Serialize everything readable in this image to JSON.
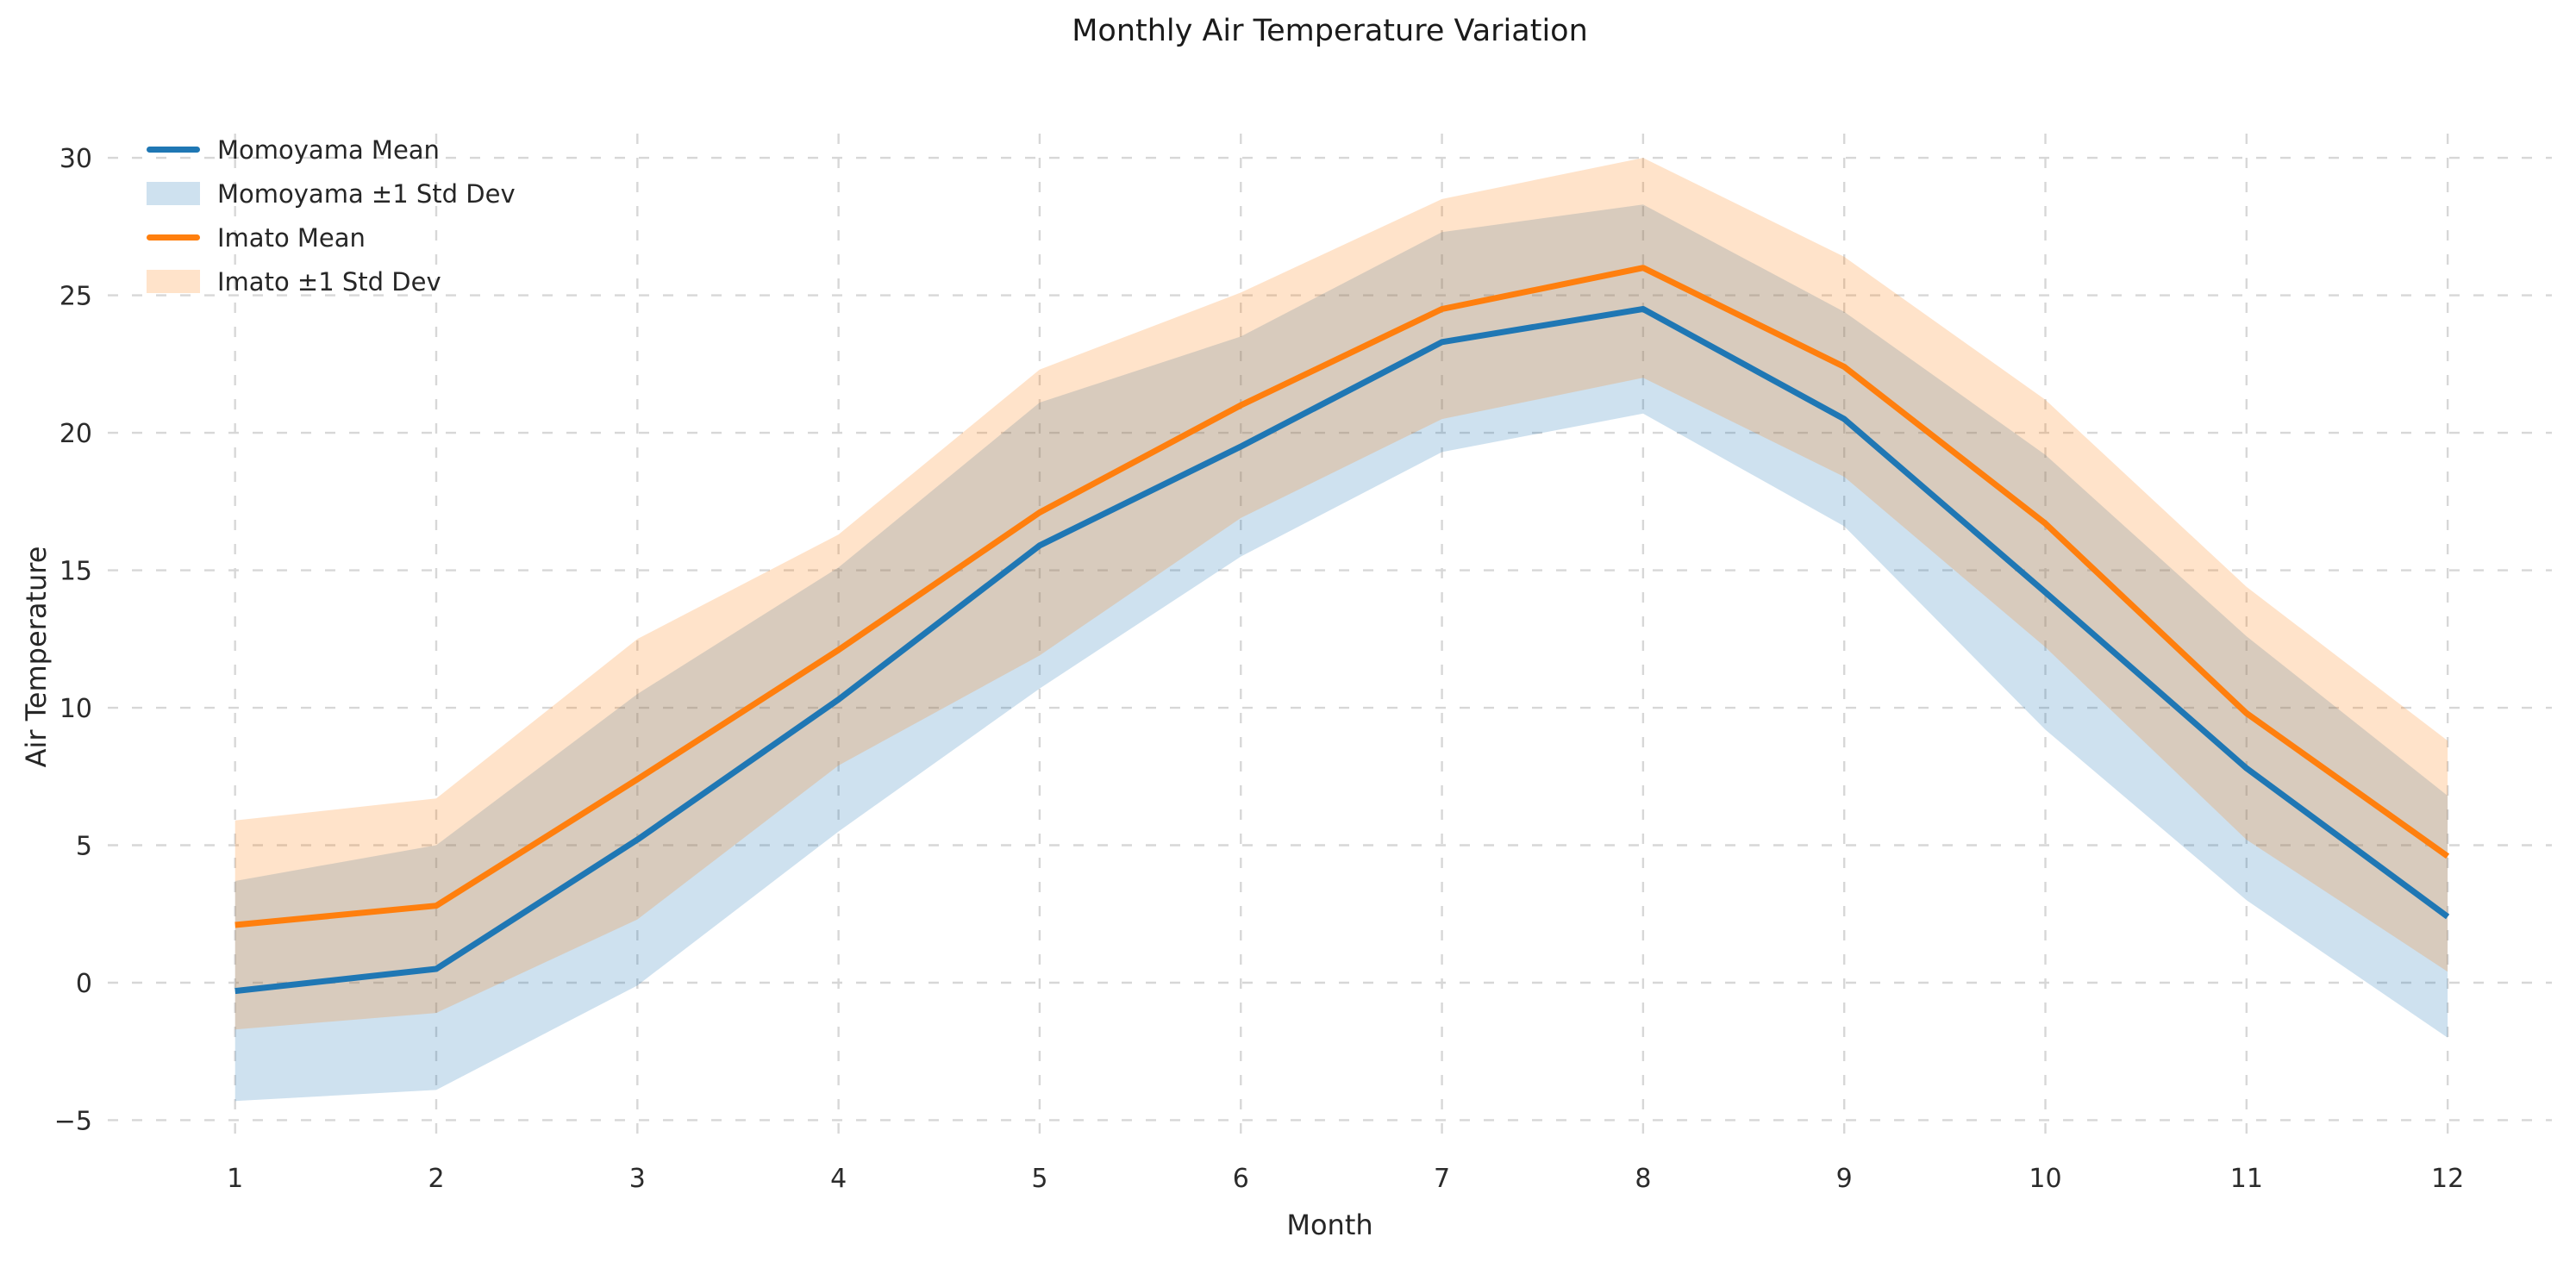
{
  "chart_data": {
    "type": "line",
    "title": "Monthly Air Temperature Variation",
    "xlabel": "Month",
    "ylabel": "Air Temperature",
    "x": [
      1,
      2,
      3,
      4,
      5,
      6,
      7,
      8,
      9,
      10,
      11,
      12
    ],
    "x_tick_labels": [
      "1",
      "2",
      "3",
      "4",
      "5",
      "6",
      "7",
      "8",
      "9",
      "10",
      "11",
      "12"
    ],
    "y_ticks": [
      -5,
      0,
      5,
      10,
      15,
      20,
      25,
      30
    ],
    "y_tick_labels": [
      "−5",
      "0",
      "5",
      "10",
      "15",
      "20",
      "25",
      "30"
    ],
    "xlim": [
      0.367,
      12.518
    ],
    "ylim": [
      -5.8,
      30.88
    ],
    "grid": {
      "style": "dashed",
      "color": "#d7d7d7",
      "both_axes": true
    },
    "legend": {
      "position": "upper-left",
      "frame": false
    },
    "axis_text_color": "#2b2b2b",
    "series": [
      {
        "name": "Momoyama Mean",
        "kind": "line",
        "color": "#1f77b4",
        "values": [
          -0.3,
          0.5,
          5.2,
          10.3,
          15.9,
          19.5,
          23.3,
          24.5,
          20.5,
          14.2,
          7.8,
          2.4
        ]
      },
      {
        "name": "Momoyama ±1 Std Dev",
        "kind": "band",
        "color": "rgba(31,119,180,0.22)",
        "upper": [
          3.7,
          5.0,
          10.5,
          15.1,
          21.1,
          23.5,
          27.3,
          28.3,
          24.4,
          19.2,
          12.6,
          6.8
        ],
        "lower": [
          -4.3,
          -3.9,
          -0.1,
          5.5,
          10.7,
          15.5,
          19.3,
          20.7,
          16.6,
          9.2,
          3.0,
          -2.0
        ]
      },
      {
        "name": "Imato Mean",
        "kind": "line",
        "color": "#ff7f0e",
        "values": [
          2.1,
          2.8,
          7.4,
          12.1,
          17.1,
          21.0,
          24.5,
          26.0,
          22.4,
          16.7,
          9.8,
          4.6
        ]
      },
      {
        "name": "Imato ±1 Std Dev",
        "kind": "band",
        "color": "rgba(255,127,14,0.22)",
        "upper": [
          5.9,
          6.7,
          12.5,
          16.3,
          22.3,
          25.1,
          28.5,
          30.0,
          26.4,
          21.2,
          14.4,
          8.8
        ],
        "lower": [
          -1.7,
          -1.1,
          2.3,
          7.9,
          11.9,
          16.9,
          20.5,
          22.0,
          18.4,
          12.2,
          5.2,
          0.4
        ]
      }
    ]
  }
}
